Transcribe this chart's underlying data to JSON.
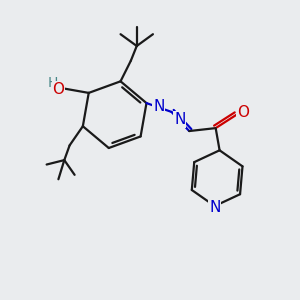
{
  "background_color": "#eaecee",
  "line_color": "#1a1a1a",
  "bond_width": 1.6,
  "atom_colors": {
    "O": "#cc0000",
    "N": "#0000cc",
    "H": "#4a8888"
  },
  "font_size_atom": 11
}
